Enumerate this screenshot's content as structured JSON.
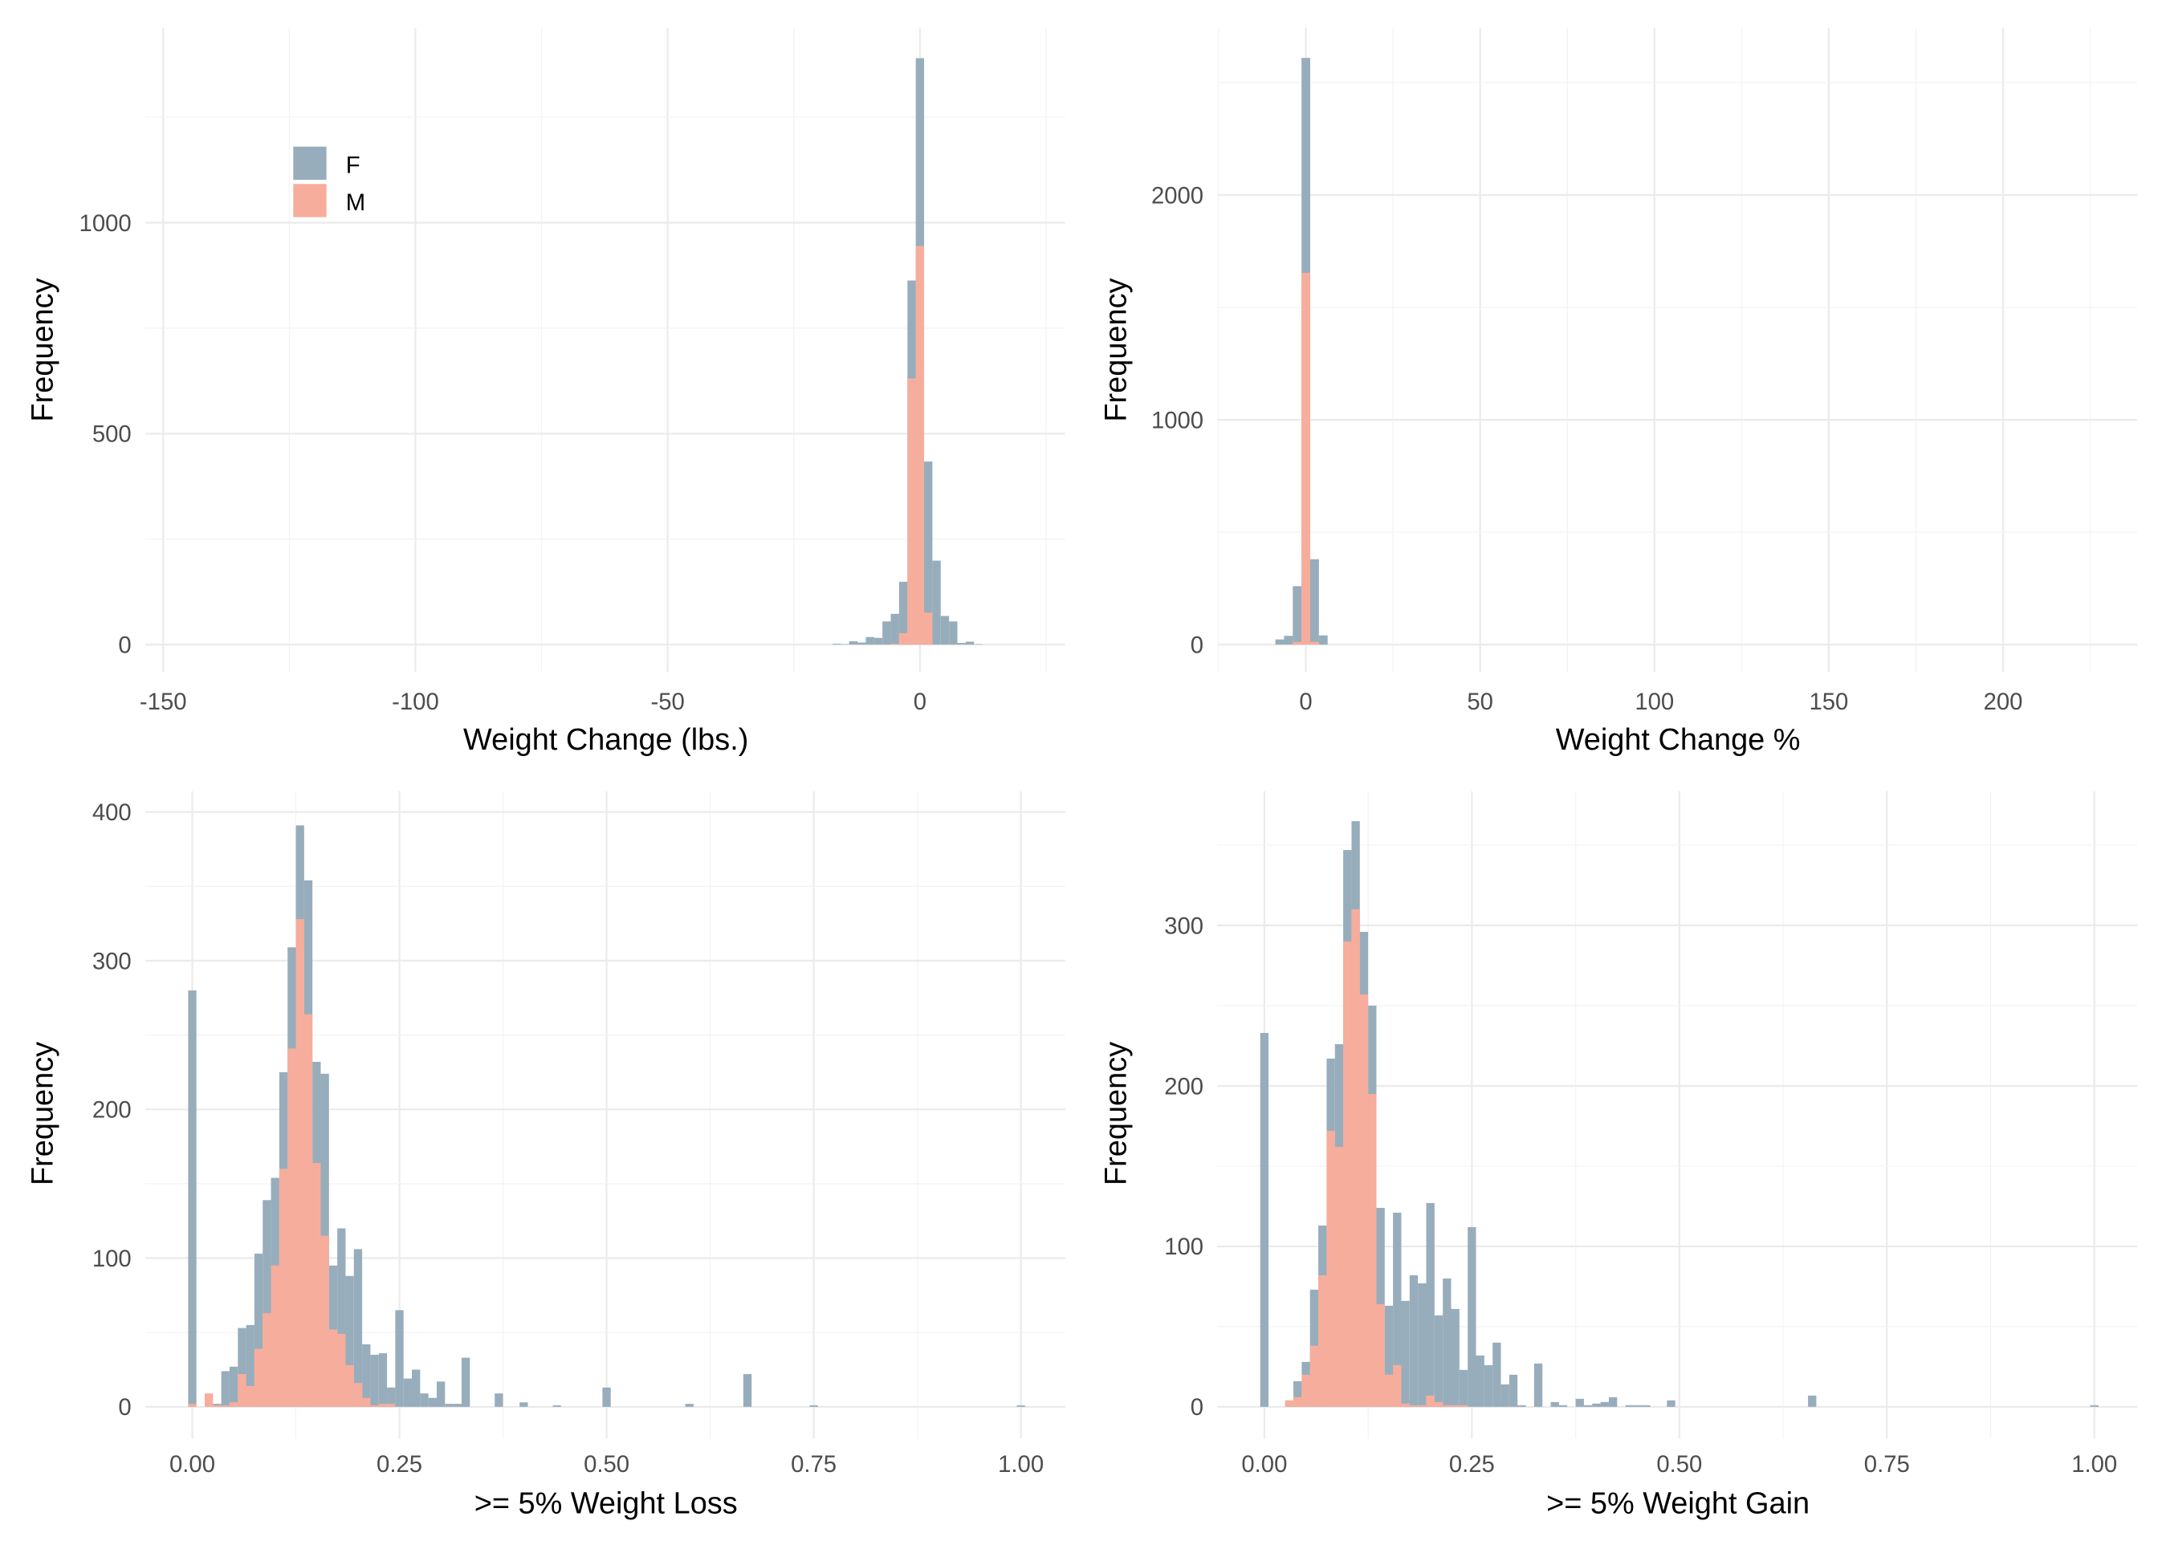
{
  "legend": {
    "placement": "top-left inside first panel",
    "entries": [
      {
        "label": "F",
        "color": "#97ADBC"
      },
      {
        "label": "M",
        "color": "#F7AD9C"
      }
    ]
  },
  "chart_data": [
    {
      "type": "histogram",
      "xlabel": "Weight Change (lbs.)",
      "ylabel": "Frequency",
      "xlim": [
        -155,
        27
      ],
      "ylim": [
        0,
        1450
      ],
      "x_ticks": [
        -150,
        -100,
        -50,
        0
      ],
      "x_tick_labels": [
        "-150",
        "-100",
        "-50",
        "0"
      ],
      "y_ticks": [
        0,
        500,
        1000
      ],
      "y_tick_labels": [
        "0",
        "500",
        "1000"
      ],
      "grid": true,
      "binwidth": 1.65,
      "x": [
        -16.5,
        -14.85,
        -13.2,
        -11.55,
        -9.9,
        -8.25,
        -6.6,
        -4.95,
        -3.3,
        -1.65,
        0,
        1.65,
        3.3,
        4.95,
        6.6,
        8.25,
        9.9,
        11.55
      ],
      "series": [
        {
          "name": "F",
          "values": [
            2,
            1,
            8,
            5,
            18,
            16,
            55,
            73,
            149,
            863,
            1390,
            434,
            199,
            68,
            55,
            4,
            7,
            1
          ]
        },
        {
          "name": "M",
          "values": [
            0,
            0,
            0,
            0,
            0,
            0,
            0,
            2,
            27,
            631,
            945,
            76,
            0,
            0,
            0,
            0,
            0,
            0
          ]
        }
      ]
    },
    {
      "type": "histogram",
      "xlabel": "Weight Change %",
      "ylabel": "Frequency",
      "xlim": [
        -25,
        240
      ],
      "ylim": [
        0,
        2750
      ],
      "x_ticks": [
        0,
        50,
        100,
        150,
        200
      ],
      "x_tick_labels": [
        "0",
        "50",
        "100",
        "150",
        "200"
      ],
      "y_ticks": [
        0,
        1000,
        2000
      ],
      "y_tick_labels": [
        "0",
        "1000",
        "2000"
      ],
      "grid": true,
      "binwidth": 2.5,
      "x": [
        -7.5,
        -5,
        -2.5,
        0,
        2.5,
        5
      ],
      "series": [
        {
          "name": "F",
          "values": [
            23,
            39,
            260,
            2610,
            380,
            41
          ]
        },
        {
          "name": "M",
          "values": [
            0,
            0,
            12,
            1654,
            12,
            0
          ]
        }
      ]
    },
    {
      "type": "histogram",
      "xlabel": ">= 5% Weight Loss",
      "ylabel": "Frequency",
      "xlim": [
        -0.06,
        1.05
      ],
      "ylim": [
        0,
        410
      ],
      "x_ticks": [
        0,
        0.25,
        0.5,
        0.75,
        1
      ],
      "x_tick_labels": [
        "0.00",
        "0.25",
        "0.50",
        "0.75",
        "1.00"
      ],
      "y_ticks": [
        0,
        100,
        200,
        300,
        400
      ],
      "y_tick_labels": [
        "0",
        "100",
        "200",
        "300",
        "400"
      ],
      "grid": true,
      "binwidth": 0.01,
      "x": [
        0,
        0.02,
        0.03,
        0.04,
        0.05,
        0.06,
        0.07,
        0.08,
        0.09,
        0.1,
        0.11,
        0.12,
        0.13,
        0.14,
        0.15,
        0.16,
        0.17,
        0.18,
        0.19,
        0.2,
        0.21,
        0.22,
        0.23,
        0.24,
        0.25,
        0.26,
        0.27,
        0.28,
        0.29,
        0.3,
        0.31,
        0.32,
        0.33,
        0.37,
        0.4,
        0.44,
        0.5,
        0.6,
        0.67,
        0.75,
        1.0
      ],
      "series": [
        {
          "name": "F",
          "values": [
            280,
            0,
            2,
            24,
            27,
            53,
            55,
            103,
            139,
            154,
            225,
            309,
            391,
            354,
            232,
            224,
            95,
            120,
            88,
            106,
            42,
            35,
            36,
            13,
            65,
            19,
            25,
            9,
            6,
            17,
            2,
            2,
            33,
            9,
            3,
            1,
            13,
            2,
            22,
            1,
            1
          ]
        },
        {
          "name": "M",
          "values": [
            2,
            9,
            1,
            1,
            3,
            22,
            14,
            39,
            63,
            95,
            160,
            241,
            328,
            264,
            164,
            115,
            52,
            49,
            28,
            16,
            6,
            1,
            2,
            2,
            0,
            0,
            0,
            0,
            0,
            0,
            0,
            0,
            0,
            0,
            0,
            0,
            0,
            0,
            0,
            0,
            0
          ]
        }
      ]
    },
    {
      "type": "histogram",
      "xlabel": ">= 5% Weight Gain",
      "ylabel": "Frequency",
      "xlim": [
        -0.06,
        1.05
      ],
      "ylim": [
        0,
        380
      ],
      "x_ticks": [
        0,
        0.25,
        0.5,
        0.75,
        1
      ],
      "x_tick_labels": [
        "0.00",
        "0.25",
        "0.50",
        "0.75",
        "1.00"
      ],
      "y_ticks": [
        0,
        100,
        200,
        300
      ],
      "y_tick_labels": [
        "0",
        "100",
        "200",
        "300"
      ],
      "grid": true,
      "binwidth": 0.01,
      "x": [
        0,
        0.03,
        0.04,
        0.05,
        0.06,
        0.07,
        0.08,
        0.09,
        0.1,
        0.11,
        0.12,
        0.13,
        0.14,
        0.15,
        0.16,
        0.17,
        0.18,
        0.19,
        0.2,
        0.21,
        0.22,
        0.23,
        0.24,
        0.25,
        0.26,
        0.27,
        0.28,
        0.29,
        0.3,
        0.31,
        0.33,
        0.35,
        0.36,
        0.38,
        0.39,
        0.4,
        0.41,
        0.42,
        0.44,
        0.45,
        0.46,
        0.49,
        0.66,
        1.0
      ],
      "series": [
        {
          "name": "F",
          "values": [
            233,
            4,
            16,
            28,
            73,
            113,
            217,
            226,
            347,
            365,
            296,
            250,
            124,
            63,
            121,
            66,
            82,
            77,
            127,
            57,
            80,
            61,
            23,
            112,
            32,
            26,
            40,
            14,
            20,
            1,
            27,
            3,
            1,
            5,
            1,
            2,
            3,
            6,
            1,
            1,
            1,
            4,
            7,
            1
          ]
        },
        {
          "name": "M",
          "values": [
            0,
            4,
            6,
            20,
            38,
            82,
            172,
            162,
            290,
            310,
            257,
            195,
            64,
            20,
            26,
            2,
            1,
            1,
            7,
            3,
            1,
            1,
            1,
            0,
            0,
            0,
            0,
            0,
            0,
            0,
            0,
            0,
            0,
            0,
            0,
            0,
            0,
            0,
            0,
            0,
            0,
            0,
            0,
            0
          ]
        }
      ]
    }
  ]
}
